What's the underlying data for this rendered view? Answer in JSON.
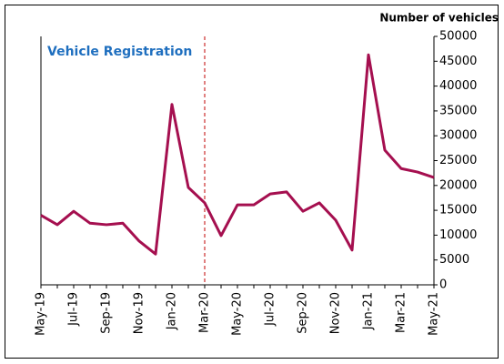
{
  "chart_data": {
    "type": "line",
    "title": "Number of vehicles",
    "annotation": "Vehicle Registration",
    "categories": [
      "May-19",
      null,
      "Jul-19",
      null,
      "Sep-19",
      null,
      "Nov-19",
      null,
      "Jan-20",
      null,
      "Mar-20",
      null,
      "May-20",
      null,
      "Jul-20",
      null,
      "Sep-20",
      null,
      "Nov-20",
      null,
      "Jan-21",
      null,
      "Mar-21",
      null,
      "May-21"
    ],
    "series": [
      {
        "name": "Vehicle Registration",
        "color": "#a50f4f",
        "values": [
          14000,
          12100,
          14800,
          12400,
          12100,
          12400,
          8800,
          6200,
          36300,
          19600,
          16500,
          9900,
          16100,
          16100,
          18300,
          18700,
          14800,
          16500,
          13000,
          7000,
          46300,
          27100,
          23400,
          22700,
          21600
        ]
      }
    ],
    "ylim": [
      0,
      50000
    ],
    "yticks": [
      0,
      5000,
      10000,
      15000,
      20000,
      25000,
      30000,
      35000,
      40000,
      45000,
      50000
    ],
    "vline": {
      "x": "Mar-20",
      "color": "#c00000"
    },
    "grid": false
  }
}
